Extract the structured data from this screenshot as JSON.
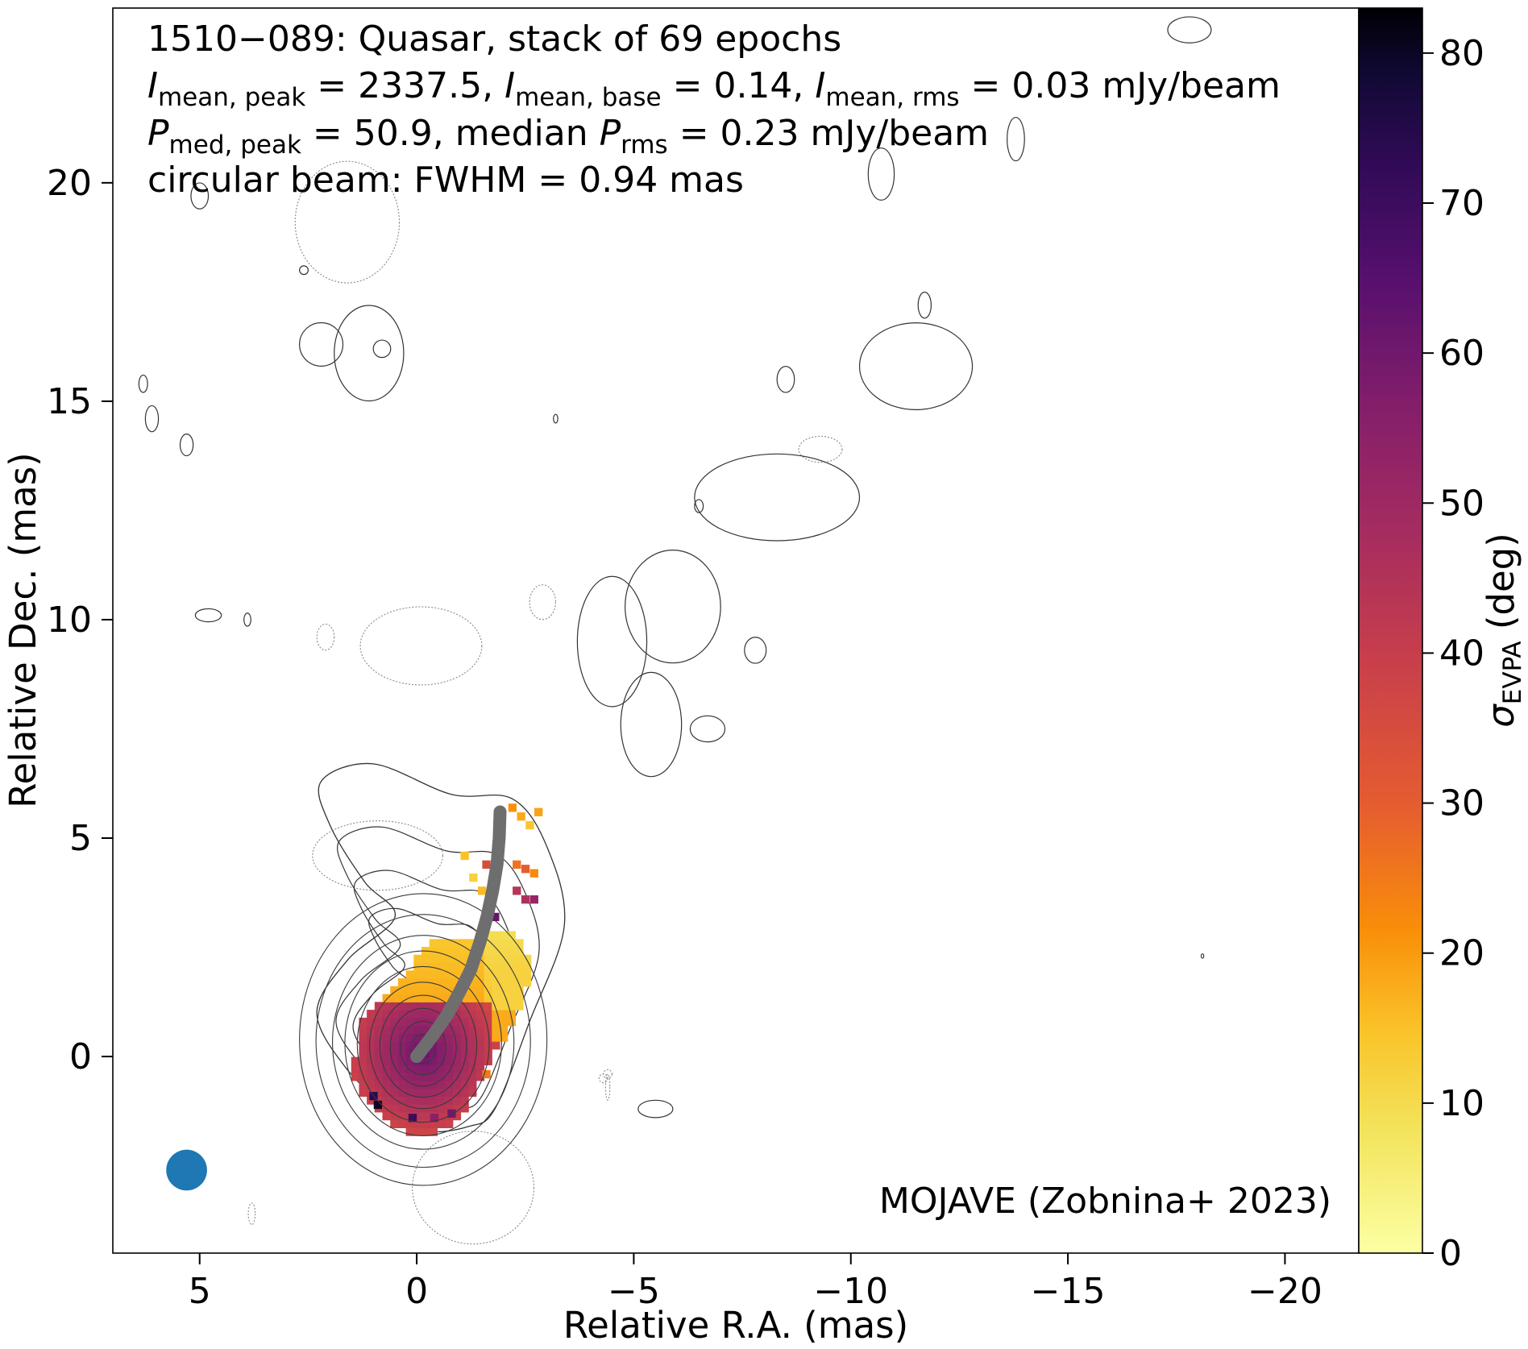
{
  "chart_data": {
    "type": "heatmap",
    "description_free": true,
    "annotations": {
      "line1": "1510−089: Quasar, stack of 69 epochs",
      "line2": {
        "parts": [
          {
            "i": "I",
            "sub": "mean, peak",
            "tail": " = 2337.5, "
          },
          {
            "i": "I",
            "sub": "mean, base",
            "tail": " = 0.14, "
          },
          {
            "i": "I",
            "sub": "mean, rms",
            "tail": " = 0.03 mJy/beam"
          }
        ]
      },
      "line3": {
        "parts": [
          {
            "i": "P",
            "sub": "med, peak",
            "tail": " = 50.9, median "
          },
          {
            "i": "P",
            "sub": "rms",
            "tail": " = 0.23 mJy/beam"
          }
        ]
      },
      "line4": "circular beam: FWHM = 0.94 mas",
      "credit": "MOJAVE (Zobnina+ 2023)"
    },
    "xlabel": "Relative R.A. (mas)",
    "ylabel": "Relative Dec. (mas)",
    "xlim": [
      7.0,
      -21.7
    ],
    "ylim": [
      -4.5,
      24.0
    ],
    "x_ticks": [
      5,
      0,
      -5,
      -10,
      -15,
      -20
    ],
    "x_tick_labels": [
      "5",
      "0",
      "−5",
      "−10",
      "−15",
      "−20"
    ],
    "y_ticks": [
      0,
      5,
      10,
      15,
      20
    ],
    "y_tick_labels": [
      "0",
      "5",
      "10",
      "15",
      "20"
    ],
    "colorbar": {
      "label_main": "σ",
      "label_sub": "EVPA",
      "label_tail": " (deg)",
      "min": 0,
      "max": 83,
      "ticks": [
        0,
        10,
        20,
        30,
        40,
        50,
        60,
        70,
        80
      ],
      "tick_labels": [
        "0",
        "10",
        "20",
        "30",
        "40",
        "50",
        "60",
        "70",
        "80"
      ],
      "colormap": "inferno_r"
    },
    "beam": {
      "x": 5.3,
      "y": -2.6,
      "fwhm_mas": 0.94,
      "color": "#1f77b4"
    },
    "ridgeline": {
      "color": "#6e6e6e",
      "points": [
        [
          0.0,
          0.0
        ],
        [
          -0.35,
          0.45
        ],
        [
          -0.7,
          0.95
        ],
        [
          -1.0,
          1.5
        ],
        [
          -1.25,
          2.0
        ],
        [
          -1.45,
          2.6
        ],
        [
          -1.62,
          3.2
        ],
        [
          -1.75,
          3.8
        ],
        [
          -1.85,
          4.4
        ],
        [
          -1.9,
          5.0
        ],
        [
          -1.92,
          5.6
        ]
      ]
    },
    "contours": {
      "color": "#333333",
      "core_center": [
        -0.15,
        0.15
      ],
      "core_levels": [
        0.3,
        0.55,
        0.8,
        1.05,
        1.3,
        1.6,
        1.9,
        2.2,
        2.6,
        3.0
      ],
      "outer_envelope": [
        [
          0.6,
          -1.2
        ],
        [
          1.6,
          -0.3
        ],
        [
          2.3,
          1.0
        ],
        [
          1.6,
          2.2
        ],
        [
          0.5,
          3.2
        ],
        [
          1.2,
          4.0
        ],
        [
          2.0,
          5.3
        ],
        [
          2.2,
          6.3
        ],
        [
          1.0,
          6.7
        ],
        [
          -0.8,
          6.0
        ],
        [
          -2.2,
          5.9
        ],
        [
          -3.0,
          4.8
        ],
        [
          -3.4,
          3.0
        ],
        [
          -2.6,
          0.8
        ],
        [
          -1.8,
          -1.2
        ],
        [
          -1.2,
          -1.6
        ],
        [
          -0.2,
          -1.7
        ]
      ],
      "blobs": [
        {
          "cx": 2.2,
          "cy": 16.3,
          "rx": 0.5,
          "ry": 0.5
        },
        {
          "cx": 1.1,
          "cy": 16.1,
          "rx": 0.8,
          "ry": 1.1
        },
        {
          "cx": 0.8,
          "cy": 16.2,
          "rx": 0.2,
          "ry": 0.2
        },
        {
          "cx": 5.0,
          "cy": 19.7,
          "rx": 0.2,
          "ry": 0.3
        },
        {
          "cx": 6.3,
          "cy": 15.4,
          "rx": 0.1,
          "ry": 0.2
        },
        {
          "cx": 6.1,
          "cy": 14.6,
          "rx": 0.15,
          "ry": 0.3
        },
        {
          "cx": 5.3,
          "cy": 14.0,
          "rx": 0.15,
          "ry": 0.25
        },
        {
          "cx": 4.8,
          "cy": 10.1,
          "rx": 0.3,
          "ry": 0.15
        },
        {
          "cx": 3.9,
          "cy": 10.0,
          "rx": 0.08,
          "ry": 0.15
        },
        {
          "cx": -10.7,
          "cy": 20.2,
          "rx": 0.3,
          "ry": 0.6
        },
        {
          "cx": -13.8,
          "cy": 21.0,
          "rx": 0.2,
          "ry": 0.5
        },
        {
          "cx": -17.8,
          "cy": 23.5,
          "rx": 0.5,
          "ry": 0.3
        },
        {
          "cx": -11.5,
          "cy": 15.8,
          "rx": 1.3,
          "ry": 1.0
        },
        {
          "cx": -11.7,
          "cy": 17.2,
          "rx": 0.15,
          "ry": 0.3
        },
        {
          "cx": -8.5,
          "cy": 15.5,
          "rx": 0.2,
          "ry": 0.3
        },
        {
          "cx": -8.3,
          "cy": 12.8,
          "rx": 1.9,
          "ry": 1.0
        },
        {
          "cx": -6.5,
          "cy": 12.6,
          "rx": 0.1,
          "ry": 0.15
        },
        {
          "cx": -5.9,
          "cy": 10.3,
          "rx": 1.1,
          "ry": 1.3
        },
        {
          "cx": -7.8,
          "cy": 9.3,
          "rx": 0.25,
          "ry": 0.3
        },
        {
          "cx": -4.5,
          "cy": 9.5,
          "rx": 0.8,
          "ry": 1.5
        },
        {
          "cx": -6.7,
          "cy": 7.5,
          "rx": 0.4,
          "ry": 0.3
        },
        {
          "cx": -5.4,
          "cy": 7.6,
          "rx": 0.7,
          "ry": 1.2
        },
        {
          "cx": -5.5,
          "cy": -1.2,
          "rx": 0.4,
          "ry": 0.2
        },
        {
          "cx": -18.1,
          "cy": 2.3,
          "rx": 0.03,
          "ry": 0.05
        },
        {
          "cx": 2.6,
          "cy": 18.0,
          "rx": 0.1,
          "ry": 0.1
        },
        {
          "cx": -3.2,
          "cy": 14.6,
          "rx": 0.05,
          "ry": 0.1
        }
      ],
      "dotted_blobs": [
        {
          "cx": 1.6,
          "cy": 19.1,
          "rx": 1.2,
          "ry": 1.4
        },
        {
          "cx": -0.1,
          "cy": 9.4,
          "rx": 1.4,
          "ry": 0.9
        },
        {
          "cx": 2.1,
          "cy": 9.6,
          "rx": 0.2,
          "ry": 0.3
        },
        {
          "cx": -2.9,
          "cy": 10.4,
          "rx": 0.3,
          "ry": 0.4
        },
        {
          "cx": -9.3,
          "cy": 13.9,
          "rx": 0.5,
          "ry": 0.3
        },
        {
          "cx": -4.4,
          "cy": -0.4,
          "rx": 0.1,
          "ry": 0.1
        },
        {
          "cx": -4.3,
          "cy": -0.5,
          "rx": 0.1,
          "ry": 0.1
        },
        {
          "cx": -4.4,
          "cy": -0.7,
          "rx": 0.05,
          "ry": 0.3
        },
        {
          "cx": 3.8,
          "cy": -3.6,
          "rx": 0.08,
          "ry": 0.25
        },
        {
          "cx": 0.9,
          "cy": 4.6,
          "rx": 1.5,
          "ry": 0.8
        },
        {
          "cx": -1.3,
          "cy": -3.0,
          "rx": 1.4,
          "ry": 1.3
        }
      ]
    },
    "polarization_map": {
      "description_free": true,
      "core_center": [
        -0.15,
        0.1
      ],
      "region": [
        [
          0.9,
          -1.3
        ],
        [
          1.5,
          -0.5
        ],
        [
          1.3,
          0.8
        ],
        [
          0.2,
          2.0
        ],
        [
          -0.3,
          2.7
        ],
        [
          -1.0,
          2.7
        ],
        [
          -1.8,
          2.9
        ],
        [
          -2.5,
          2.7
        ],
        [
          -2.6,
          1.7
        ],
        [
          -2.2,
          0.7
        ],
        [
          -1.4,
          -0.6
        ],
        [
          -1.0,
          -1.4
        ],
        [
          -0.4,
          -1.8
        ],
        [
          0.4,
          -1.7
        ]
      ],
      "core_sigma_deg": 62,
      "edge_sigma_deg": 32,
      "jet_sigma_deg": 18,
      "far_jet_sigma_deg": 12,
      "spots": [
        {
          "x": -2.5,
          "y": 4.3,
          "v": 30
        },
        {
          "x": -2.3,
          "y": 4.4,
          "v": 26
        },
        {
          "x": -2.7,
          "y": 4.2,
          "v": 22
        },
        {
          "x": -2.4,
          "y": 5.5,
          "v": 18
        },
        {
          "x": -2.6,
          "y": 5.3,
          "v": 14
        },
        {
          "x": -2.8,
          "y": 5.6,
          "v": 19
        },
        {
          "x": -2.2,
          "y": 5.7,
          "v": 21
        },
        {
          "x": -2.5,
          "y": 3.6,
          "v": 46
        },
        {
          "x": -2.7,
          "y": 3.6,
          "v": 52
        },
        {
          "x": -2.3,
          "y": 3.8,
          "v": 44
        },
        {
          "x": -1.1,
          "y": 4.6,
          "v": 15
        },
        {
          "x": -1.3,
          "y": 4.1,
          "v": 12
        },
        {
          "x": -1.5,
          "y": 3.8,
          "v": 16
        },
        {
          "x": -1.6,
          "y": 4.4,
          "v": 35
        },
        {
          "x": -1.8,
          "y": 3.2,
          "v": 62
        },
        {
          "x": 0.9,
          "y": -1.1,
          "v": 80
        },
        {
          "x": 1.0,
          "y": -0.9,
          "v": 74
        },
        {
          "x": 0.1,
          "y": -1.4,
          "v": 70
        },
        {
          "x": -0.4,
          "y": -1.4,
          "v": 55
        },
        {
          "x": -0.8,
          "y": -1.3,
          "v": 60
        },
        {
          "x": -1.6,
          "y": -0.4,
          "v": 25
        }
      ]
    }
  }
}
